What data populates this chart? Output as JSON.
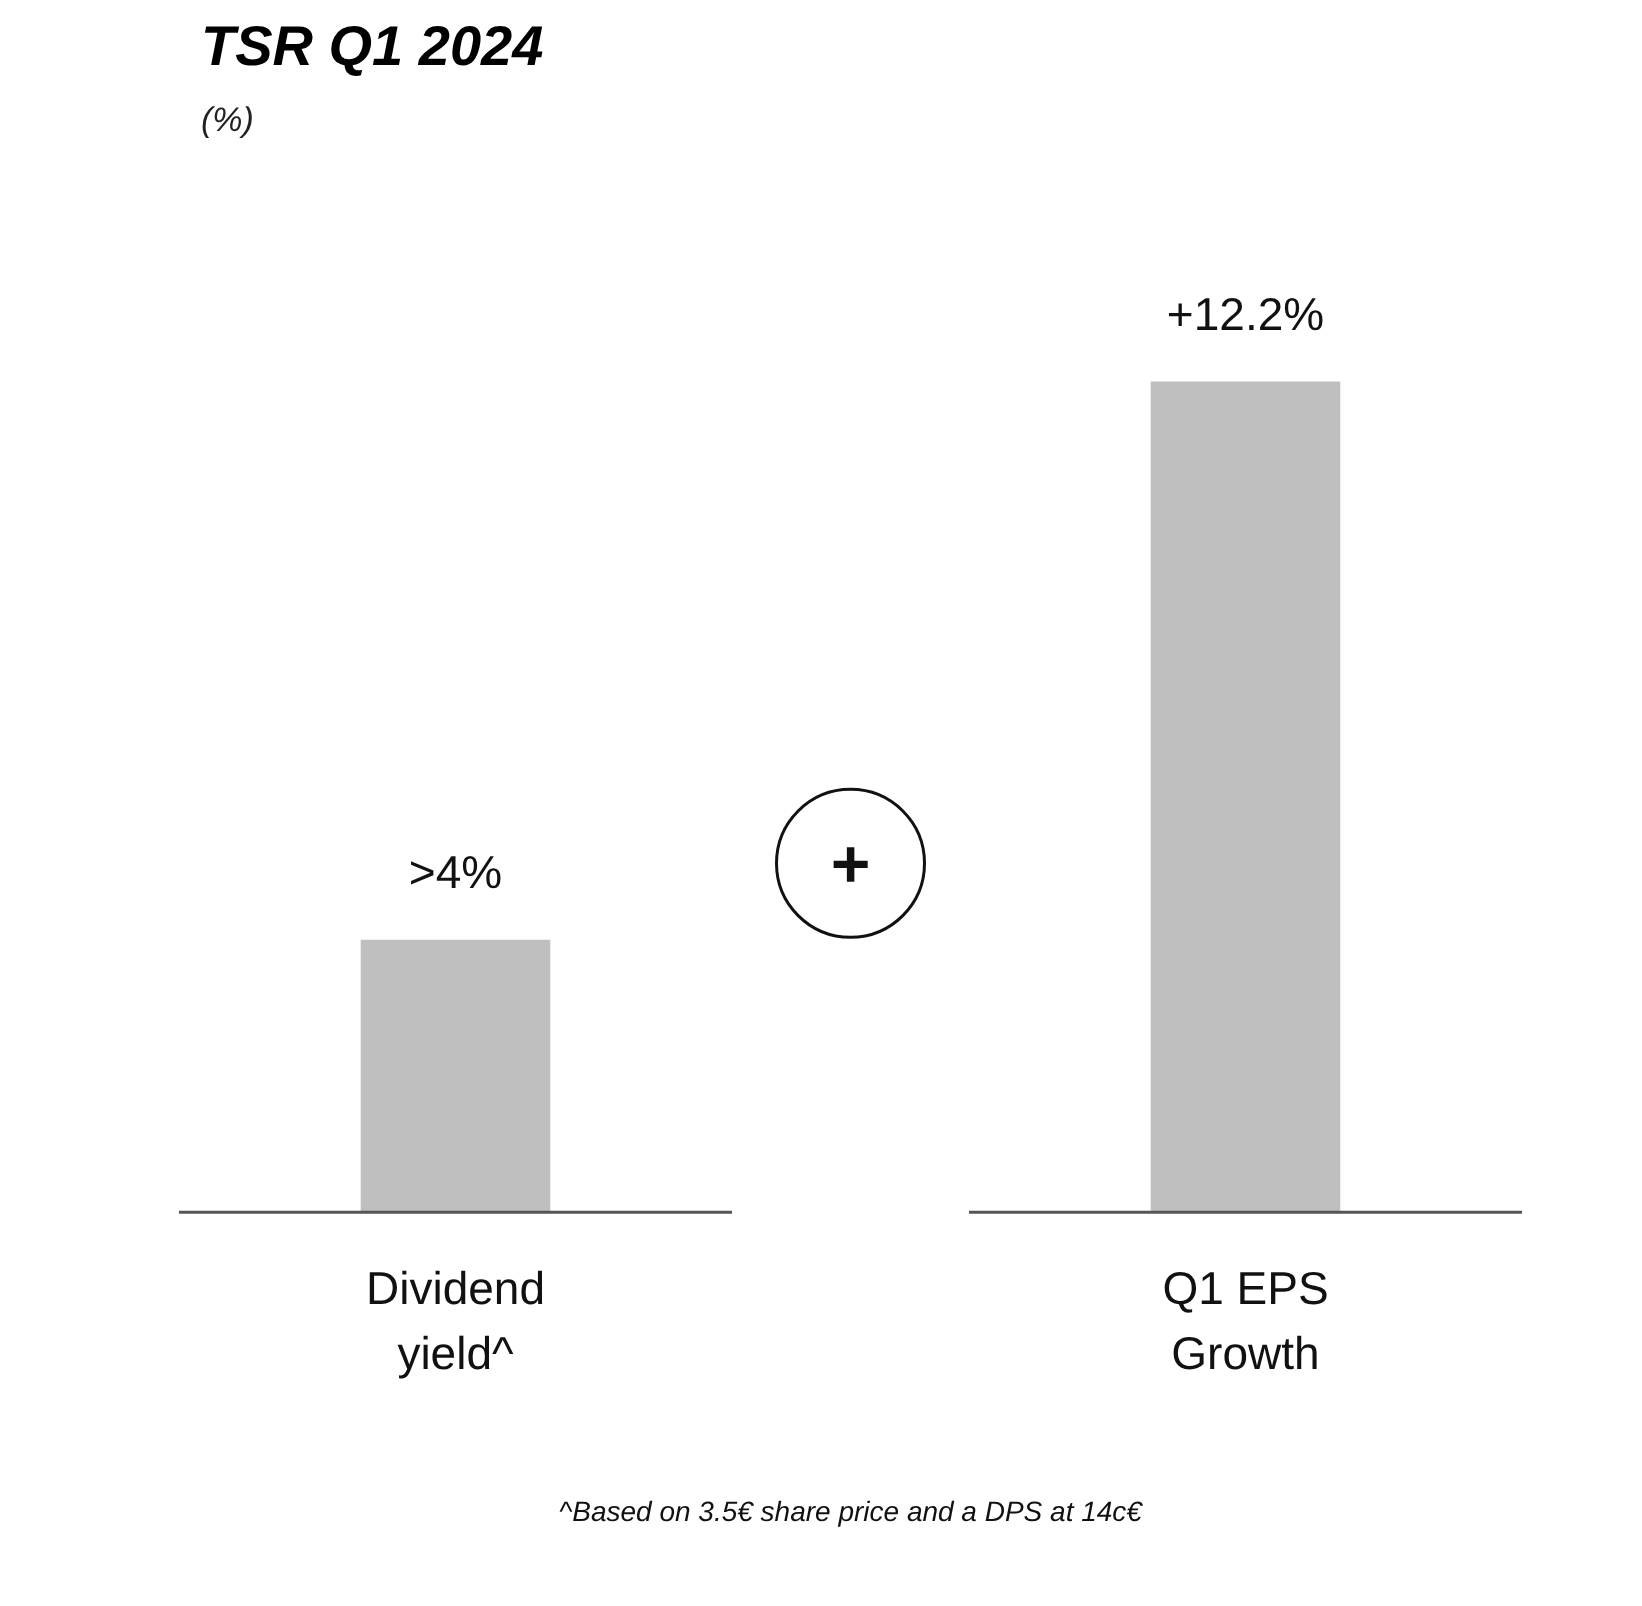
{
  "chart_data": {
    "type": "bar",
    "title": "TSR Q1 2024",
    "subtitle": "(%)",
    "categories": [
      "Dividend yield^",
      "Q1 EPS Growth"
    ],
    "values": [
      4,
      12.2
    ],
    "value_labels": [
      ">4%",
      "+12.2%"
    ],
    "color": "#bfbfbf",
    "annotations": [
      "+",
      "^Based on 3.5€ share price and a DPS at 14c€"
    ],
    "grid": false
  }
}
